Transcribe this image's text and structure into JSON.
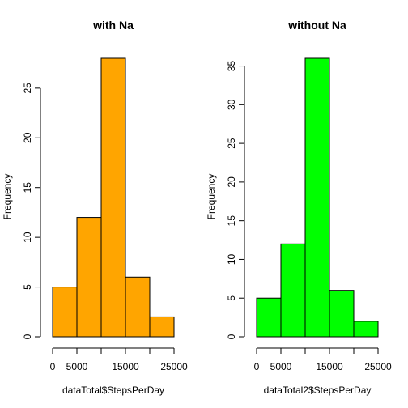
{
  "chart_data": [
    {
      "type": "bar",
      "title": "with Na",
      "xlabel": "dataTotal$StepsPerDay",
      "ylabel": "Frequency",
      "bin_edges": [
        0,
        5000,
        10000,
        15000,
        20000,
        25000
      ],
      "values": [
        5,
        12,
        28,
        6,
        2
      ],
      "xlim": [
        0,
        25000
      ],
      "ylim": [
        0,
        28
      ],
      "x_ticks": [
        0,
        5000,
        15000,
        25000
      ],
      "x_tick_labels": [
        "0",
        "5000",
        "15000",
        "25000"
      ],
      "y_ticks": [
        0,
        5,
        10,
        15,
        20,
        25
      ],
      "y_tick_labels": [
        "0",
        "5",
        "10",
        "15",
        "20",
        "25"
      ],
      "color": "#FFA500",
      "grid": false
    },
    {
      "type": "bar",
      "title": "without Na",
      "xlabel": "dataTotal2$StepsPerDay",
      "ylabel": "Frequency",
      "bin_edges": [
        0,
        5000,
        10000,
        15000,
        20000,
        25000
      ],
      "values": [
        5,
        12,
        36,
        6,
        2
      ],
      "xlim": [
        0,
        25000
      ],
      "ylim": [
        0,
        36
      ],
      "x_ticks": [
        0,
        5000,
        15000,
        25000
      ],
      "x_tick_labels": [
        "0",
        "5000",
        "15000",
        "25000"
      ],
      "y_ticks": [
        0,
        5,
        10,
        15,
        20,
        25,
        30,
        35
      ],
      "y_tick_labels": [
        "0",
        "5",
        "10",
        "15",
        "20",
        "25",
        "30",
        "35"
      ],
      "color": "#00FF00",
      "grid": false
    }
  ]
}
